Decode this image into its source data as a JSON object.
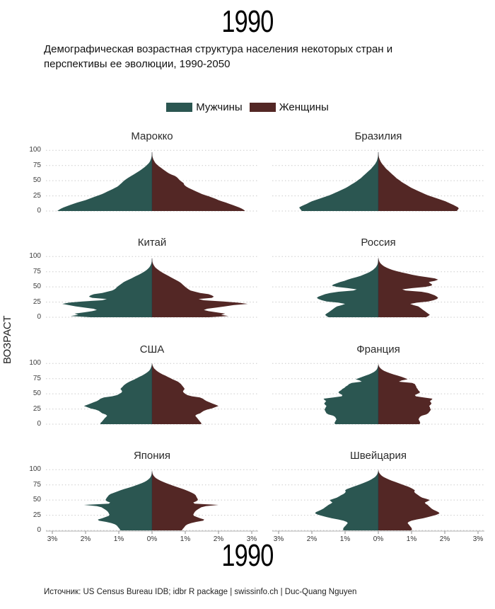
{
  "header": {
    "year": "1990",
    "subtitle_line1": "Демографическая возрастная структура населения некоторых стран и",
    "subtitle_line2": "перспективы ее эволюции, 1990-2050"
  },
  "legend": {
    "male_label": "Мужчины",
    "female_label": "Женщины",
    "male_color": "#2b5651",
    "female_color": "#532725"
  },
  "axis": {
    "y_label": "ВОЗРАСТ",
    "y_ticks": [
      100,
      75,
      50,
      25,
      0
    ],
    "x_tick_labels": [
      "3%",
      "2%",
      "1%",
      "0%",
      "1%",
      "2%",
      "3%"
    ],
    "x_max_percent": 3
  },
  "footer": {
    "year": "1990",
    "source": "Источник: US Census Bureau IDB; idbr R package | swissinfo.ch | Duc-Quang Nguyen"
  },
  "panels": [
    {
      "key": "morocco",
      "title": "Марокко"
    },
    {
      "key": "brazil",
      "title": "Бразилия"
    },
    {
      "key": "china",
      "title": "Китай"
    },
    {
      "key": "russia",
      "title": "Россия"
    },
    {
      "key": "usa",
      "title": "США"
    },
    {
      "key": "france",
      "title": "Франция"
    },
    {
      "key": "japan",
      "title": "Япония"
    },
    {
      "key": "switzerland",
      "title": "Швейцария"
    }
  ],
  "chart_data": {
    "type": "area",
    "description": "Population pyramids, 1990: percent of population at each age, males left (teal), females right (dark red), age 0-100 on vertical axis, 0-3% on each side of horizontal axis",
    "ages": [
      0,
      2,
      4,
      6,
      8,
      10,
      12,
      14,
      16,
      18,
      20,
      22,
      24,
      26,
      28,
      30,
      32,
      34,
      36,
      38,
      40,
      42,
      44,
      46,
      48,
      50,
      52,
      54,
      56,
      58,
      60,
      62,
      64,
      66,
      68,
      70,
      72,
      74,
      76,
      78,
      80,
      82,
      84,
      86,
      88,
      90,
      92,
      94,
      96,
      98,
      100
    ],
    "countries": {
      "morocco": {
        "male": [
          2.85,
          2.8,
          2.74,
          2.66,
          2.56,
          2.46,
          2.36,
          2.25,
          2.12,
          2.0,
          1.9,
          1.8,
          1.7,
          1.6,
          1.5,
          1.42,
          1.35,
          1.27,
          1.19,
          1.12,
          1.05,
          1.0,
          0.96,
          0.92,
          0.88,
          0.84,
          0.79,
          0.74,
          0.68,
          0.62,
          0.56,
          0.5,
          0.44,
          0.38,
          0.33,
          0.28,
          0.23,
          0.19,
          0.15,
          0.11,
          0.08,
          0.06,
          0.045,
          0.03,
          0.02,
          0.012,
          0.007,
          0.004,
          0.002,
          0.001,
          0
        ],
        "female": [
          2.8,
          2.76,
          2.7,
          2.62,
          2.52,
          2.42,
          2.32,
          2.22,
          2.1,
          2.0,
          1.92,
          1.82,
          1.72,
          1.61,
          1.5,
          1.42,
          1.34,
          1.26,
          1.18,
          1.1,
          1.04,
          0.99,
          0.96,
          0.95,
          0.9,
          0.85,
          0.81,
          0.78,
          0.74,
          0.68,
          0.59,
          0.51,
          0.45,
          0.4,
          0.35,
          0.3,
          0.25,
          0.2,
          0.16,
          0.12,
          0.09,
          0.07,
          0.05,
          0.035,
          0.022,
          0.013,
          0.008,
          0.004,
          0.002,
          0.001,
          0
        ]
      },
      "brazil": {
        "male": [
          2.3,
          2.33,
          2.36,
          2.38,
          2.31,
          2.23,
          2.15,
          2.08,
          2.0,
          1.9,
          1.79,
          1.68,
          1.57,
          1.47,
          1.38,
          1.3,
          1.22,
          1.14,
          1.06,
          0.98,
          0.92,
          0.86,
          0.8,
          0.74,
          0.68,
          0.63,
          0.58,
          0.53,
          0.49,
          0.45,
          0.41,
          0.37,
          0.33,
          0.29,
          0.25,
          0.21,
          0.18,
          0.15,
          0.12,
          0.09,
          0.07,
          0.05,
          0.037,
          0.026,
          0.017,
          0.011,
          0.006,
          0.003,
          0.002,
          0.001,
          0
        ],
        "female": [
          2.36,
          2.39,
          2.42,
          2.4,
          2.33,
          2.26,
          2.18,
          2.1,
          2.02,
          1.92,
          1.81,
          1.7,
          1.59,
          1.49,
          1.4,
          1.32,
          1.24,
          1.16,
          1.08,
          1.0,
          0.94,
          0.88,
          0.82,
          0.76,
          0.7,
          0.65,
          0.6,
          0.55,
          0.51,
          0.47,
          0.43,
          0.39,
          0.35,
          0.31,
          0.27,
          0.23,
          0.2,
          0.17,
          0.14,
          0.11,
          0.085,
          0.065,
          0.048,
          0.034,
          0.022,
          0.014,
          0.008,
          0.005,
          0.003,
          0.001,
          0
        ]
      },
      "china": {
        "male": [
          1.85,
          2.45,
          2.22,
          2.33,
          2.05,
          1.8,
          1.66,
          1.76,
          2.05,
          2.3,
          2.5,
          2.7,
          2.5,
          2.1,
          1.5,
          1.36,
          1.8,
          1.9,
          1.85,
          1.75,
          1.5,
          1.35,
          1.2,
          1.13,
          1.08,
          1.05,
          1.0,
          0.95,
          0.9,
          0.85,
          0.78,
          0.7,
          0.62,
          0.55,
          0.48,
          0.4,
          0.33,
          0.27,
          0.21,
          0.16,
          0.12,
          0.085,
          0.06,
          0.04,
          0.025,
          0.015,
          0.008,
          0.004,
          0.002,
          0.001,
          0
        ],
        "female": [
          1.72,
          2.3,
          2.08,
          2.2,
          1.95,
          1.7,
          1.56,
          1.66,
          1.95,
          2.2,
          2.45,
          2.88,
          2.58,
          2.15,
          1.55,
          1.4,
          1.8,
          1.86,
          1.8,
          1.7,
          1.45,
          1.3,
          1.16,
          1.1,
          1.05,
          1.0,
          0.96,
          0.92,
          0.88,
          0.83,
          0.77,
          0.7,
          0.63,
          0.56,
          0.5,
          0.43,
          0.36,
          0.3,
          0.24,
          0.19,
          0.14,
          0.1,
          0.072,
          0.05,
          0.032,
          0.02,
          0.011,
          0.006,
          0.003,
          0.001,
          0
        ]
      },
      "russia": {
        "male": [
          1.5,
          1.56,
          1.6,
          1.56,
          1.5,
          1.45,
          1.4,
          1.35,
          1.3,
          1.24,
          1.1,
          1.0,
          1.2,
          1.55,
          1.7,
          1.8,
          1.85,
          1.8,
          1.7,
          1.6,
          1.45,
          1.2,
          0.75,
          0.65,
          0.92,
          1.25,
          1.4,
          1.35,
          1.25,
          1.15,
          1.02,
          0.92,
          0.8,
          0.66,
          0.54,
          0.45,
          0.36,
          0.28,
          0.22,
          0.16,
          0.12,
          0.08,
          0.055,
          0.035,
          0.022,
          0.013,
          0.007,
          0.004,
          0.002,
          0.001,
          0
        ],
        "female": [
          1.44,
          1.5,
          1.55,
          1.5,
          1.45,
          1.4,
          1.35,
          1.3,
          1.25,
          1.2,
          1.06,
          0.96,
          1.16,
          1.5,
          1.66,
          1.76,
          1.8,
          1.76,
          1.7,
          1.6,
          1.5,
          1.3,
          0.82,
          0.72,
          1.02,
          1.42,
          1.6,
          1.62,
          1.56,
          1.52,
          1.7,
          1.8,
          1.7,
          1.46,
          1.22,
          1.02,
          0.86,
          0.7,
          0.55,
          0.42,
          0.32,
          0.24,
          0.17,
          0.12,
          0.08,
          0.05,
          0.03,
          0.016,
          0.008,
          0.003,
          0
        ]
      },
      "usa": {
        "male": [
          1.55,
          1.55,
          1.51,
          1.48,
          1.45,
          1.42,
          1.38,
          1.35,
          1.4,
          1.5,
          1.55,
          1.6,
          1.7,
          1.85,
          1.95,
          2.05,
          1.95,
          1.85,
          1.76,
          1.66,
          1.6,
          1.55,
          1.45,
          1.2,
          1.05,
          0.98,
          0.92,
          0.9,
          0.92,
          0.95,
          0.92,
          0.88,
          0.85,
          0.8,
          0.75,
          0.68,
          0.6,
          0.52,
          0.45,
          0.38,
          0.3,
          0.24,
          0.18,
          0.13,
          0.09,
          0.06,
          0.04,
          0.025,
          0.015,
          0.008,
          0.004
        ],
        "female": [
          1.48,
          1.48,
          1.45,
          1.42,
          1.39,
          1.36,
          1.33,
          1.3,
          1.35,
          1.45,
          1.5,
          1.56,
          1.66,
          1.8,
          1.9,
          2.0,
          1.92,
          1.82,
          1.73,
          1.64,
          1.58,
          1.53,
          1.44,
          1.2,
          1.06,
          1.0,
          0.95,
          0.93,
          0.95,
          0.98,
          0.96,
          0.93,
          0.9,
          0.87,
          0.83,
          0.78,
          0.7,
          0.62,
          0.55,
          0.47,
          0.4,
          0.32,
          0.25,
          0.19,
          0.14,
          0.1,
          0.06,
          0.04,
          0.022,
          0.011,
          0.005
        ]
      },
      "france": {
        "male": [
          1.3,
          1.32,
          1.3,
          1.28,
          1.26,
          1.28,
          1.3,
          1.36,
          1.5,
          1.56,
          1.58,
          1.6,
          1.62,
          1.6,
          1.58,
          1.56,
          1.6,
          1.63,
          1.6,
          1.57,
          1.62,
          1.65,
          1.35,
          1.1,
          1.08,
          1.15,
          1.2,
          1.18,
          1.12,
          1.08,
          1.02,
          0.98,
          0.92,
          0.88,
          0.8,
          0.5,
          0.56,
          0.68,
          0.58,
          0.48,
          0.38,
          0.28,
          0.2,
          0.13,
          0.085,
          0.05,
          0.03,
          0.016,
          0.008,
          0.003,
          0.001
        ],
        "female": [
          1.24,
          1.26,
          1.25,
          1.23,
          1.21,
          1.23,
          1.25,
          1.31,
          1.44,
          1.5,
          1.53,
          1.56,
          1.58,
          1.56,
          1.55,
          1.53,
          1.57,
          1.6,
          1.58,
          1.55,
          1.6,
          1.63,
          1.36,
          1.13,
          1.1,
          1.18,
          1.25,
          1.24,
          1.2,
          1.18,
          1.15,
          1.14,
          1.12,
          1.1,
          1.02,
          0.62,
          0.7,
          0.88,
          0.8,
          0.7,
          0.58,
          0.46,
          0.35,
          0.25,
          0.17,
          0.11,
          0.065,
          0.035,
          0.017,
          0.007,
          0.002
        ]
      },
      "japan": {
        "male": [
          0.95,
          0.97,
          1.0,
          1.03,
          1.06,
          1.12,
          1.22,
          1.38,
          1.6,
          1.63,
          1.5,
          1.4,
          1.3,
          1.28,
          1.3,
          1.32,
          1.35,
          1.4,
          1.46,
          1.52,
          1.66,
          2.05,
          1.3,
          1.26,
          1.36,
          1.4,
          1.38,
          1.36,
          1.33,
          1.3,
          1.25,
          1.15,
          1.05,
          0.95,
          0.85,
          0.72,
          0.6,
          0.5,
          0.4,
          0.3,
          0.22,
          0.16,
          0.11,
          0.07,
          0.045,
          0.027,
          0.015,
          0.008,
          0.004,
          0.002,
          0.001
        ],
        "female": [
          0.9,
          0.92,
          0.95,
          0.98,
          1.01,
          1.07,
          1.17,
          1.33,
          1.54,
          1.57,
          1.45,
          1.35,
          1.26,
          1.24,
          1.26,
          1.28,
          1.31,
          1.36,
          1.42,
          1.48,
          1.62,
          2.0,
          1.28,
          1.24,
          1.33,
          1.38,
          1.37,
          1.35,
          1.33,
          1.31,
          1.27,
          1.2,
          1.12,
          1.03,
          0.94,
          0.83,
          0.72,
          0.62,
          0.52,
          0.42,
          0.33,
          0.25,
          0.18,
          0.12,
          0.08,
          0.05,
          0.028,
          0.014,
          0.007,
          0.003,
          0.001
        ]
      },
      "switzerland": {
        "male": [
          1.05,
          1.06,
          1.05,
          1.02,
          0.98,
          0.95,
          0.92,
          0.95,
          1.05,
          1.2,
          1.4,
          1.56,
          1.7,
          1.82,
          1.9,
          1.88,
          1.8,
          1.72,
          1.65,
          1.6,
          1.55,
          1.5,
          1.43,
          1.38,
          1.43,
          1.46,
          1.35,
          1.25,
          1.18,
          1.12,
          1.05,
          1.0,
          0.98,
          1.0,
          0.95,
          0.85,
          0.75,
          0.65,
          0.55,
          0.45,
          0.36,
          0.28,
          0.21,
          0.15,
          0.1,
          0.065,
          0.038,
          0.022,
          0.011,
          0.005,
          0.002
        ],
        "female": [
          1.0,
          1.01,
          1.0,
          0.97,
          0.94,
          0.91,
          0.88,
          0.91,
          1.0,
          1.15,
          1.35,
          1.5,
          1.64,
          1.76,
          1.84,
          1.81,
          1.74,
          1.66,
          1.6,
          1.56,
          1.52,
          1.48,
          1.42,
          1.4,
          1.48,
          1.55,
          1.44,
          1.32,
          1.25,
          1.2,
          1.15,
          1.1,
          1.08,
          1.1,
          1.05,
          0.98,
          0.9,
          0.8,
          0.7,
          0.6,
          0.5,
          0.4,
          0.31,
          0.23,
          0.16,
          0.105,
          0.065,
          0.036,
          0.018,
          0.008,
          0.003
        ]
      }
    }
  }
}
